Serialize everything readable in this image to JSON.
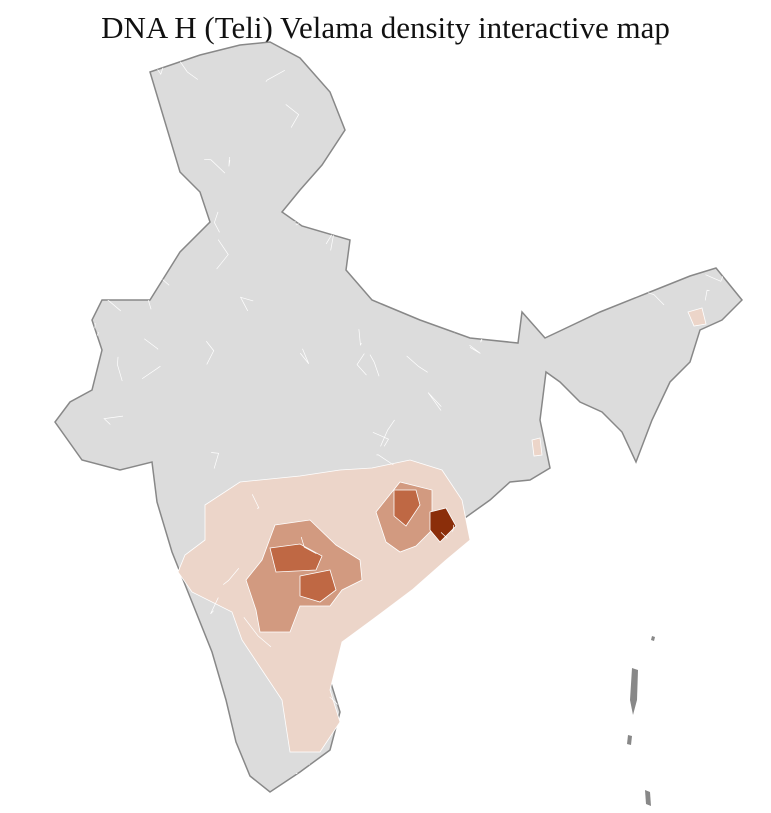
{
  "title": "DNA H (Teli) Velama density interactive map",
  "map": {
    "base_color": "#dcdcdc",
    "state_border_color": "#888888",
    "district_border_color": "#ffffff",
    "density_colors": {
      "none": "#dcdcdc",
      "low": "#ecd5c9",
      "medium": "#d29a80",
      "high": "#bf6844",
      "highest": "#8b2e0a"
    }
  }
}
